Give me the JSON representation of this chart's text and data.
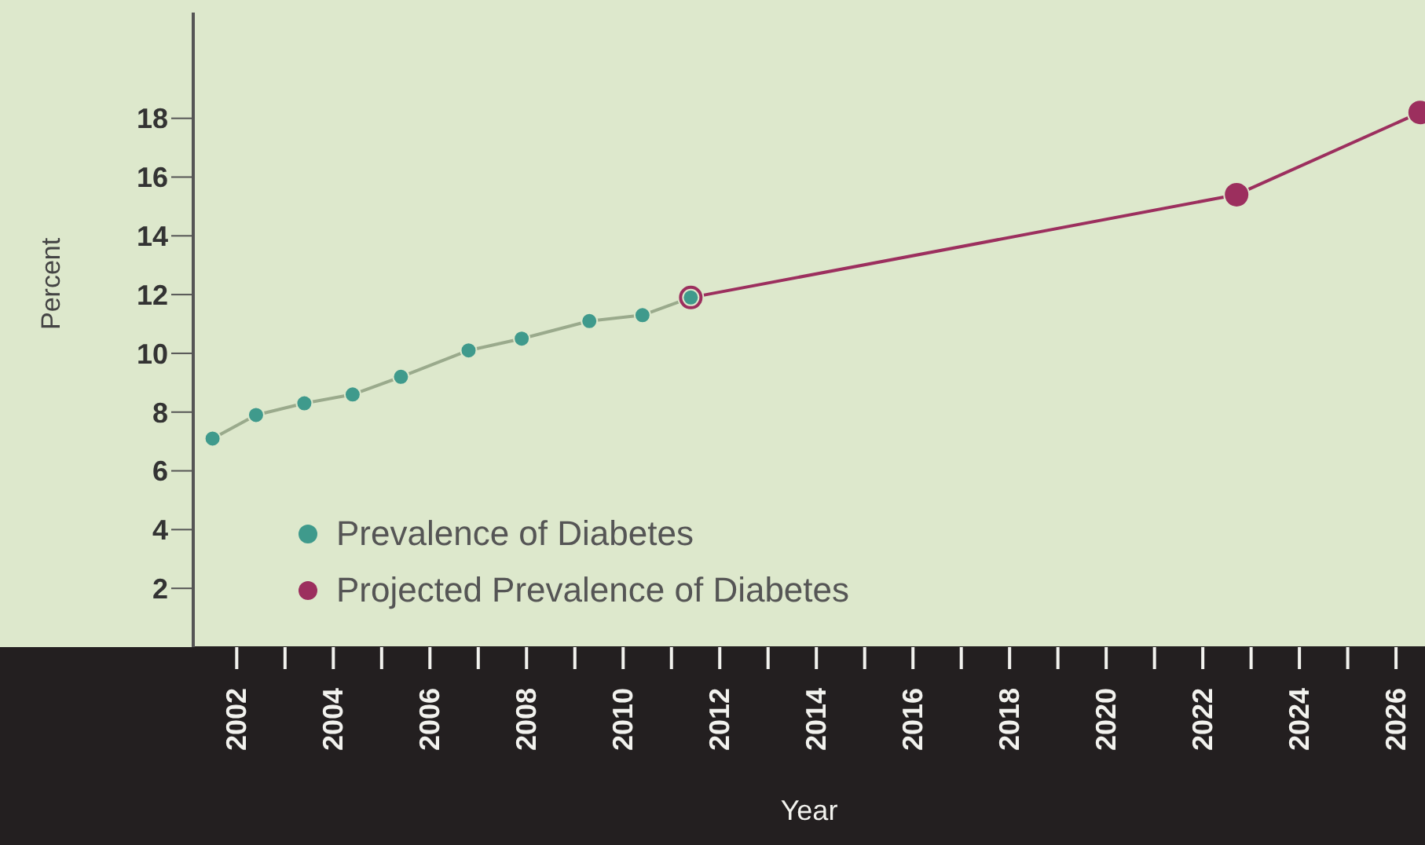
{
  "chart_data": {
    "type": "line",
    "xlabel": "Year",
    "ylabel": "Percent",
    "xlim": [
      2001.1,
      2026.6
    ],
    "ylim": [
      0,
      21.6
    ],
    "xticks": [
      2002,
      {
        "value": 2003,
        "label": null
      },
      2004,
      {
        "value": 2005,
        "label": null
      },
      2006,
      {
        "value": 2007,
        "label": null
      },
      2008,
      {
        "value": 2009,
        "label": null
      },
      2010,
      {
        "value": 2011,
        "label": null
      },
      2012,
      {
        "value": 2013,
        "label": null
      },
      2014,
      {
        "value": 2015,
        "label": null
      },
      2016,
      {
        "value": 2017,
        "label": null
      },
      2018,
      {
        "value": 2019,
        "label": null
      },
      2020,
      {
        "value": 2021,
        "label": null
      },
      2022,
      {
        "value": 2023,
        "label": null
      },
      2024,
      {
        "value": 2025,
        "label": null
      },
      2026
    ],
    "yticks": [
      2,
      4,
      6,
      8,
      10,
      12,
      14,
      16,
      18
    ],
    "series": [
      {
        "name": "Prevalence of Diabetes",
        "color": "#3f9a8c",
        "x": [
          2001.5,
          2002.4,
          2003.4,
          2004.4,
          2005.4,
          2006.8,
          2007.9,
          2009.3,
          2010.4,
          2011.4
        ],
        "values": [
          7.1,
          7.9,
          8.3,
          8.6,
          9.2,
          10.1,
          10.5,
          11.1,
          11.3,
          11.9
        ]
      },
      {
        "name": "Projected Prevalence of Diabetes",
        "color": "#9c2f5e",
        "x": [
          2011.4,
          2022.7,
          2026.5
        ],
        "values": [
          11.9,
          15.4,
          18.2
        ]
      }
    ],
    "grid": false,
    "legend": "bottom left",
    "marker": "circle",
    "line_style": "solid"
  }
}
